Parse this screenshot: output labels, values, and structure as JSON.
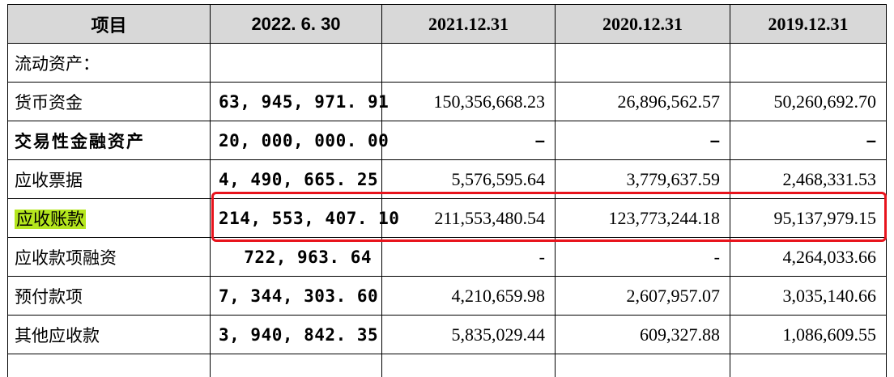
{
  "columns": [
    "项目",
    "2022. 6. 30",
    "2021.12.31",
    "2020.12.31",
    "2019.12.31"
  ],
  "rows": [
    {
      "item": "流动资产：",
      "values": [
        "",
        "",
        "",
        ""
      ],
      "bold": false
    },
    {
      "item": "货币资金",
      "values": [
        "63, 945, 971. 91",
        "150,356,668.23",
        "26,896,562.57",
        "50,260,692.70"
      ],
      "bold": false
    },
    {
      "item": "交易性金融资产",
      "values": [
        "20, 000, 000. 00",
        "–",
        "–",
        "–"
      ],
      "bold": true
    },
    {
      "item": "应收票据",
      "values": [
        "4, 490, 665. 25",
        "5,576,595.64",
        "3,779,637.59",
        "2,468,331.53"
      ],
      "bold": false
    },
    {
      "item": "应收账款",
      "values": [
        "214, 553, 407. 10",
        "211,553,480.54",
        "123,773,244.18",
        "95,137,979.15"
      ],
      "bold": false,
      "highlighted": true
    },
    {
      "item": "应收款项融资",
      "values": [
        "722, 963. 64",
        "-",
        "-",
        "4,264,033.66"
      ],
      "bold": false
    },
    {
      "item": "预付款项",
      "values": [
        "7, 344, 303. 60",
        "4,210,659.98",
        "2,607,957.07",
        "3,035,140.66"
      ],
      "bold": false
    },
    {
      "item": "其他应收款",
      "values": [
        "3, 940, 842. 35",
        "5,835,029.44",
        "609,327.88",
        "1,086,609.55"
      ],
      "bold": false
    }
  ],
  "colors": {
    "header_bg": "#d8d8d8",
    "highlight": "#b4e61e",
    "annotation_box": "#e8131c"
  }
}
